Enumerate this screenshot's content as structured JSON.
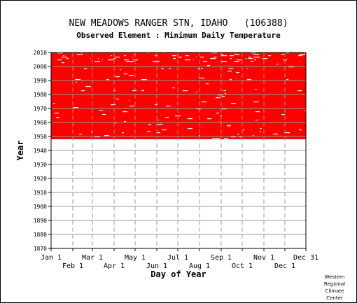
{
  "chart_data": {
    "type": "heatmap",
    "title": "NEW MEADOWS RANGER STN, IDAHO   (106388)",
    "subtitle": "Observed Element : Minimum Daily Temperature",
    "xlabel": "Day of Year",
    "ylabel": "Year",
    "x_ticks_upper": [
      "Jan 1",
      "Mar 1",
      "May 1",
      "Jul 1",
      "Sep 1",
      "Nov 1",
      "Dec 31"
    ],
    "x_ticks_lower": [
      "Feb 1",
      "Apr 1",
      "Jun 1",
      "Aug 1",
      "Oct 1",
      "Dec 1"
    ],
    "x_tick_days_upper": [
      1,
      60,
      121,
      182,
      244,
      305,
      365
    ],
    "x_tick_days_lower": [
      32,
      91,
      152,
      213,
      274,
      335
    ],
    "y_ticks": [
      1870,
      1880,
      1890,
      1900,
      1910,
      1920,
      1930,
      1940,
      1950,
      1960,
      1970,
      1980,
      1990,
      2000,
      2010
    ],
    "ylim": [
      1870,
      2010
    ],
    "xlim": [
      1,
      365
    ],
    "data_years": [
      1948,
      2010
    ],
    "grid": true,
    "data_color": "#ff0000",
    "missing_color": "#ffffff"
  },
  "credit": [
    "Western",
    "Regional",
    "Climate",
    "Center"
  ]
}
